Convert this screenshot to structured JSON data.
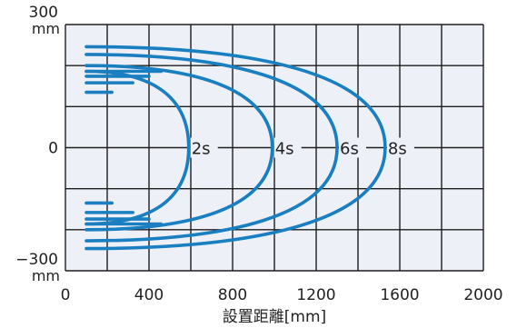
{
  "chart_data": {
    "type": "line",
    "title": "",
    "xlabel": "設置距離[mm]",
    "ylabel": "",
    "xlim": [
      0,
      2000
    ],
    "ylim": [
      -300,
      300
    ],
    "x_ticks": [
      "0",
      "400",
      "800",
      "1200",
      "1600",
      "2000"
    ],
    "y_ticks": [
      {
        "value": 300,
        "label": "300",
        "unit": "mm"
      },
      {
        "value": 0,
        "label": "0",
        "unit": ""
      },
      {
        "value": -300,
        "label": "−300",
        "unit": "mm"
      }
    ],
    "grid": true,
    "colors": {
      "curve": "#1a7fc0",
      "grid": "#1e1e1e",
      "plot_bg": "#eef0f8"
    },
    "series": [
      {
        "name": "2s",
        "x_start": 100,
        "y_outer": 186,
        "y_inner": 135,
        "x_tip": 590
      },
      {
        "name": "4s",
        "x_start": 100,
        "y_outer": 200,
        "y_inner": 158,
        "x_tip": 990
      },
      {
        "name": "6s",
        "x_start": 100,
        "y_outer": 227,
        "y_inner": 174,
        "x_tip": 1300
      },
      {
        "name": "8s",
        "x_start": 100,
        "y_outer": 246,
        "y_inner": 186,
        "x_tip": 1530
      }
    ]
  }
}
